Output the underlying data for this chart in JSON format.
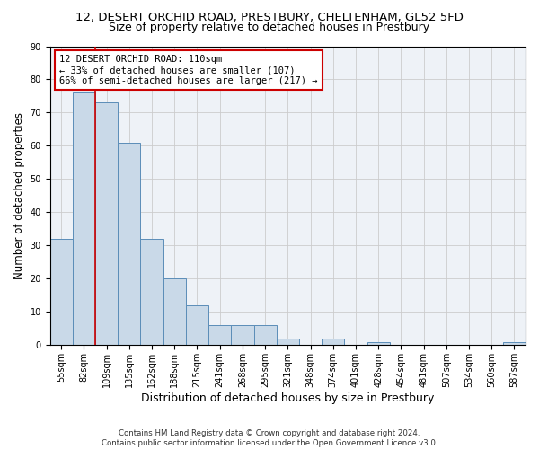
{
  "title_line1": "12, DESERT ORCHID ROAD, PRESTBURY, CHELTENHAM, GL52 5FD",
  "title_line2": "Size of property relative to detached houses in Prestbury",
  "xlabel": "Distribution of detached houses by size in Prestbury",
  "ylabel": "Number of detached properties",
  "footnote": "Contains HM Land Registry data © Crown copyright and database right 2024.\nContains public sector information licensed under the Open Government Licence v3.0.",
  "bin_labels": [
    "55sqm",
    "82sqm",
    "109sqm",
    "135sqm",
    "162sqm",
    "188sqm",
    "215sqm",
    "241sqm",
    "268sqm",
    "295sqm",
    "321sqm",
    "348sqm",
    "374sqm",
    "401sqm",
    "428sqm",
    "454sqm",
    "481sqm",
    "507sqm",
    "534sqm",
    "560sqm",
    "587sqm"
  ],
  "bar_values": [
    32,
    76,
    73,
    61,
    32,
    20,
    12,
    6,
    6,
    6,
    2,
    0,
    2,
    0,
    1,
    0,
    0,
    0,
    0,
    0,
    1
  ],
  "bar_color": "#c9d9e8",
  "bar_edge_color": "#5b8db8",
  "vline_color": "#cc0000",
  "annotation_text": "12 DESERT ORCHID ROAD: 110sqm\n← 33% of detached houses are smaller (107)\n66% of semi-detached houses are larger (217) →",
  "annotation_box_edge": "#cc0000",
  "ylim": [
    0,
    90
  ],
  "yticks": [
    0,
    10,
    20,
    30,
    40,
    50,
    60,
    70,
    80,
    90
  ],
  "grid_color": "#cccccc",
  "bg_color": "#eef2f7",
  "title_fontsize": 9.5,
  "subtitle_fontsize": 9,
  "axis_label_fontsize": 8.5,
  "tick_fontsize": 7,
  "annotation_fontsize": 7.5
}
